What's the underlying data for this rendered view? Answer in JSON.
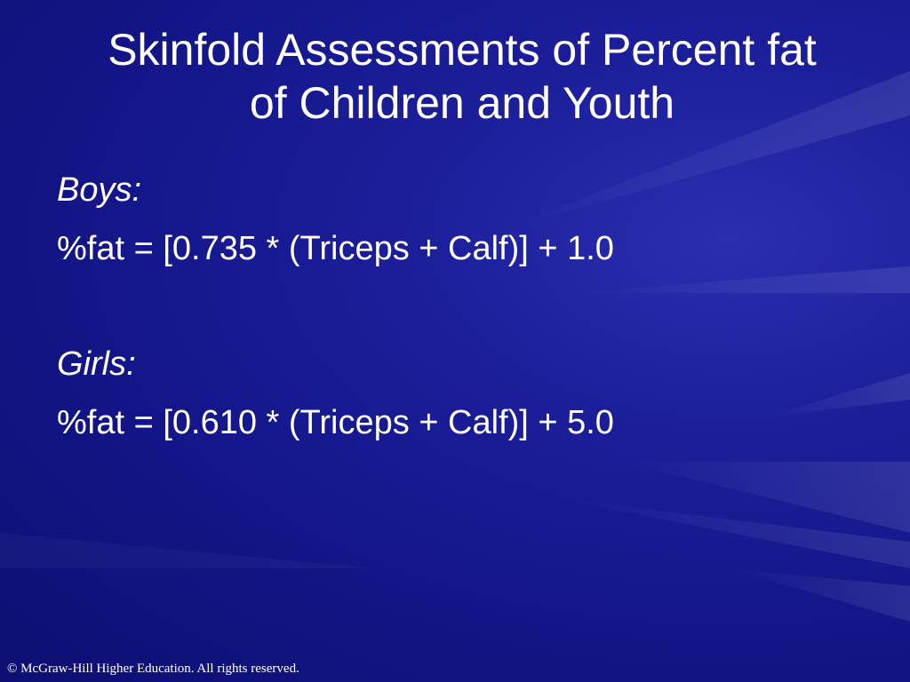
{
  "slide": {
    "title_lines": [
      "Skinfold Assessments of Percent fat",
      "of Children and Youth"
    ],
    "boys_label": "Boys:",
    "boys_formula": "%fat = [0.735 * (Triceps + Calf)] + 1.0",
    "girls_label": "Girls:",
    "girls_formula": "%fat = [0.610 * (Triceps + Calf)] + 5.0",
    "footer": "© McGraw-Hill Higher Education. All rights reserved."
  },
  "colors": {
    "background": "#14168a",
    "text": "#ffffff"
  }
}
